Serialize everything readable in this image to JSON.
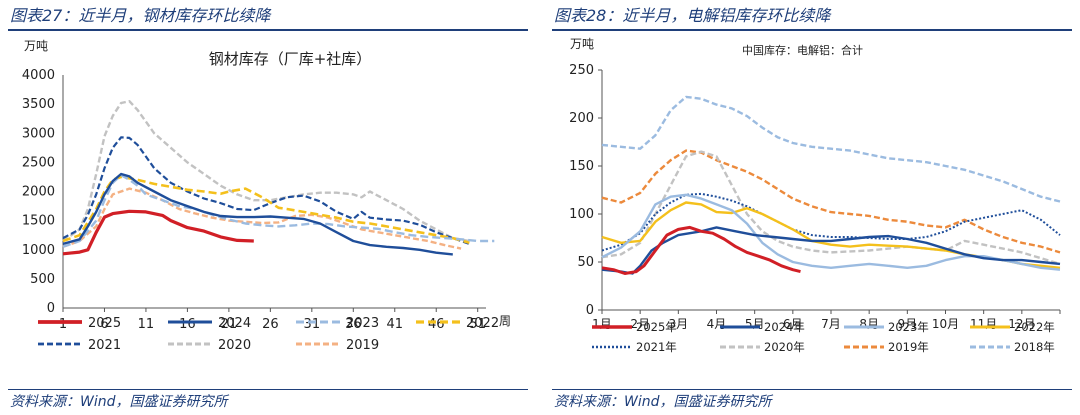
{
  "left": {
    "figure_title": "图表27：近半月，钢材库存环比续降",
    "source": "资料来源：Wind，国盛证券研究所"
  },
  "right": {
    "figure_title": "图表28：近半月，电解铝库存环比续降",
    "source": "资料来源：Wind，国盛证券研究所"
  },
  "chart_data": [
    {
      "type": "line",
      "title": "钢材库存（厂库+社库）",
      "ylabel": "万吨",
      "xlabel": "周",
      "ylim": [
        0,
        4000
      ],
      "yticks": [
        0,
        500,
        1000,
        1500,
        2000,
        2500,
        3000,
        3500,
        4000
      ],
      "xlim": [
        1,
        52
      ],
      "xticks": [
        1,
        6,
        11,
        16,
        21,
        26,
        31,
        36,
        41,
        46,
        51
      ],
      "legend_position": "bottom",
      "series": [
        {
          "name": "2025",
          "color": "#d11f26",
          "dash": "solid",
          "width": 3.2,
          "x": [
            1,
            3,
            4,
            5,
            6,
            7,
            9,
            11,
            13,
            14,
            16,
            18,
            20,
            22,
            24
          ],
          "y": [
            930,
            960,
            1000,
            1300,
            1560,
            1620,
            1660,
            1650,
            1590,
            1500,
            1380,
            1320,
            1220,
            1160,
            1150
          ]
        },
        {
          "name": "2024",
          "color": "#1f4e9a",
          "dash": "solid",
          "width": 2.4,
          "x": [
            1,
            3,
            4,
            5,
            6,
            7,
            8,
            9,
            10,
            12,
            14,
            16,
            18,
            20,
            22,
            24,
            26,
            28,
            30,
            32,
            34,
            36,
            38,
            40,
            42,
            44,
            46,
            48
          ],
          "y": [
            1100,
            1180,
            1400,
            1650,
            1950,
            2180,
            2300,
            2260,
            2150,
            2000,
            1850,
            1750,
            1650,
            1580,
            1560,
            1560,
            1570,
            1550,
            1530,
            1450,
            1300,
            1150,
            1080,
            1050,
            1030,
            1000,
            950,
            920
          ]
        },
        {
          "name": "2023",
          "color": "#9bbbe0",
          "dash": "8,4",
          "width": 2.4,
          "x": [
            1,
            3,
            5,
            6,
            7,
            8,
            9,
            10,
            11,
            13,
            15,
            17,
            19,
            21,
            23,
            25,
            27,
            29,
            31,
            33,
            35,
            37,
            39,
            41,
            43,
            45,
            47,
            49,
            51,
            53
          ],
          "y": [
            1050,
            1150,
            1500,
            1850,
            2150,
            2280,
            2200,
            2100,
            1950,
            1850,
            1750,
            1700,
            1600,
            1520,
            1450,
            1420,
            1400,
            1420,
            1450,
            1440,
            1400,
            1380,
            1360,
            1300,
            1250,
            1220,
            1200,
            1180,
            1150,
            1150
          ]
        },
        {
          "name": "2022",
          "color": "#f4c01c",
          "dash": "8,4",
          "width": 2.6,
          "x": [
            1,
            3,
            5,
            6,
            7,
            8,
            10,
            12,
            14,
            16,
            18,
            20,
            21,
            23,
            25,
            27,
            28,
            30,
            32,
            34,
            36,
            38,
            40,
            42,
            44,
            46,
            48,
            50
          ],
          "y": [
            1150,
            1250,
            1700,
            2000,
            2200,
            2250,
            2200,
            2130,
            2080,
            2030,
            2000,
            1960,
            2000,
            2050,
            1900,
            1720,
            1700,
            1650,
            1600,
            1550,
            1480,
            1450,
            1400,
            1350,
            1300,
            1250,
            1200,
            1120
          ]
        },
        {
          "name": "2021",
          "color": "#1f4e9a",
          "dash": "6,3",
          "width": 2.2,
          "x": [
            1,
            3,
            4,
            5,
            6,
            7,
            8,
            9,
            10,
            11,
            12,
            14,
            16,
            18,
            20,
            22,
            24,
            26,
            28,
            30,
            32,
            34,
            36,
            37,
            38,
            40,
            42,
            44,
            46,
            48,
            50
          ],
          "y": [
            1200,
            1350,
            1600,
            1950,
            2400,
            2750,
            2930,
            2920,
            2800,
            2600,
            2400,
            2150,
            2000,
            1880,
            1800,
            1700,
            1680,
            1800,
            1900,
            1930,
            1830,
            1650,
            1530,
            1650,
            1550,
            1520,
            1500,
            1430,
            1300,
            1200,
            1100
          ]
        },
        {
          "name": "2020",
          "color": "#c2c2c2",
          "dash": "6,3",
          "width": 2.4,
          "x": [
            1,
            3,
            4,
            5,
            6,
            7,
            8,
            9,
            10,
            11,
            12,
            14,
            16,
            18,
            20,
            22,
            24,
            26,
            28,
            30,
            32,
            34,
            36,
            37,
            38,
            40,
            42,
            44,
            46,
            48,
            50
          ],
          "y": [
            1150,
            1350,
            1700,
            2300,
            2950,
            3300,
            3520,
            3550,
            3400,
            3200,
            3000,
            2750,
            2500,
            2300,
            2100,
            1950,
            1850,
            1850,
            1900,
            1950,
            1980,
            1980,
            1950,
            1900,
            2000,
            1850,
            1700,
            1500,
            1350,
            1200,
            1150
          ]
        },
        {
          "name": "2019",
          "color": "#f4b183",
          "dash": "6,3",
          "width": 2.4,
          "x": [
            1,
            3,
            5,
            6,
            7,
            9,
            11,
            13,
            15,
            17,
            19,
            21,
            23,
            25,
            27,
            29,
            31,
            33,
            35,
            37,
            39,
            41,
            43,
            45,
            47,
            49
          ],
          "y": [
            1050,
            1150,
            1400,
            1700,
            1950,
            2050,
            1980,
            1850,
            1700,
            1620,
            1550,
            1500,
            1480,
            1460,
            1470,
            1580,
            1600,
            1550,
            1450,
            1350,
            1300,
            1250,
            1200,
            1150,
            1080,
            1020
          ]
        }
      ]
    },
    {
      "type": "line",
      "title": "中国库存：电解铝：合计",
      "ylabel": "万吨",
      "ylim": [
        0,
        250
      ],
      "yticks": [
        0,
        50,
        100,
        150,
        200,
        250
      ],
      "xlim": [
        1,
        13
      ],
      "xticks": [
        "1月",
        "2月",
        "3月",
        "4月",
        "5月",
        "6月",
        "7月",
        "8月",
        "9月",
        "10月",
        "11月",
        "12月"
      ],
      "legend_position": "bottom",
      "series": [
        {
          "name": "2025年",
          "color": "#d11f26",
          "dash": "solid",
          "width": 3,
          "x": [
            1,
            1.3,
            1.6,
            1.9,
            2.1,
            2.4,
            2.7,
            3,
            3.3,
            3.6,
            3.9,
            4.2,
            4.5,
            4.8,
            5.1,
            5.4,
            5.7,
            6,
            6.2
          ],
          "y": [
            44,
            42,
            38,
            40,
            46,
            62,
            78,
            84,
            86,
            82,
            80,
            74,
            66,
            60,
            56,
            52,
            46,
            42,
            40
          ]
        },
        {
          "name": "2024年",
          "color": "#1f4e9a",
          "dash": "solid",
          "width": 2.4,
          "x": [
            1,
            1.5,
            1.8,
            2,
            2.3,
            2.6,
            3,
            3.3,
            3.6,
            4,
            4.5,
            5,
            5.5,
            6,
            6.5,
            7,
            7.5,
            8,
            8.5,
            9,
            9.5,
            10,
            10.5,
            11,
            11.5,
            12,
            12.5,
            13
          ],
          "y": [
            42,
            40,
            38,
            46,
            62,
            70,
            78,
            80,
            82,
            86,
            82,
            78,
            76,
            74,
            72,
            72,
            74,
            76,
            77,
            74,
            70,
            64,
            58,
            54,
            52,
            52,
            50,
            48
          ]
        },
        {
          "name": "2023年",
          "color": "#9bbbe0",
          "dash": "solid",
          "width": 2.4,
          "x": [
            1,
            1.5,
            2,
            2.4,
            2.8,
            3.2,
            3.6,
            4,
            4.4,
            4.8,
            5.2,
            5.6,
            6,
            6.5,
            7,
            7.5,
            8,
            8.5,
            9,
            9.5,
            10,
            10.5,
            11,
            11.5,
            12,
            12.5,
            13
          ],
          "y": [
            55,
            65,
            82,
            110,
            118,
            120,
            116,
            110,
            104,
            90,
            70,
            58,
            50,
            46,
            44,
            46,
            48,
            46,
            44,
            46,
            52,
            56,
            56,
            52,
            48,
            44,
            42
          ]
        },
        {
          "name": "2022年",
          "color": "#f4c01c",
          "dash": "solid",
          "width": 2.4,
          "x": [
            1,
            1.5,
            2,
            2.4,
            2.8,
            3.2,
            3.6,
            4,
            4.4,
            4.8,
            5.2,
            5.6,
            6,
            6.5,
            7,
            7.5,
            8,
            8.5,
            9,
            9.5,
            10,
            10.5,
            11,
            11.5,
            12,
            12.5,
            13
          ],
          "y": [
            76,
            70,
            72,
            92,
            104,
            112,
            110,
            102,
            101,
            106,
            100,
            92,
            84,
            72,
            68,
            66,
            68,
            67,
            66,
            64,
            62,
            58,
            55,
            52,
            48,
            46,
            44
          ]
        },
        {
          "name": "2021年",
          "color": "#1f4e9a",
          "dash": "2,2",
          "width": 2,
          "x": [
            1,
            1.5,
            2,
            2.4,
            2.8,
            3.2,
            3.6,
            4,
            4.4,
            4.8,
            5.2,
            5.6,
            6,
            6.5,
            7,
            7.5,
            8,
            8.5,
            9,
            9.5,
            10,
            10.5,
            11,
            11.5,
            12,
            12.5,
            13
          ],
          "y": [
            62,
            68,
            80,
            100,
            112,
            120,
            121,
            118,
            114,
            108,
            100,
            92,
            84,
            78,
            76,
            76,
            75,
            74,
            74,
            76,
            82,
            92,
            96,
            100,
            104,
            94,
            78
          ]
        },
        {
          "name": "2020年",
          "color": "#c2c2c2",
          "dash": "6,3",
          "width": 2.4,
          "x": [
            1,
            1.5,
            2,
            2.4,
            2.8,
            3.2,
            3.6,
            4,
            4.4,
            4.8,
            5.2,
            5.6,
            6,
            6.5,
            7,
            7.5,
            8,
            8.5,
            9,
            9.5,
            10,
            10.5,
            11,
            11.5,
            12,
            12.5,
            13
          ],
          "y": [
            55,
            58,
            70,
            100,
            130,
            160,
            165,
            160,
            130,
            100,
            82,
            72,
            66,
            62,
            60,
            61,
            62,
            64,
            66,
            64,
            62,
            72,
            68,
            64,
            60,
            54,
            48
          ]
        },
        {
          "name": "2019年",
          "color": "#ec8a3c",
          "dash": "6,3",
          "width": 2.4,
          "x": [
            1,
            1.5,
            2,
            2.4,
            2.8,
            3.2,
            3.6,
            4,
            4.4,
            4.8,
            5.2,
            5.6,
            6,
            6.5,
            7,
            7.5,
            8,
            8.5,
            9,
            9.5,
            10,
            10.5,
            11,
            11.5,
            12,
            12.5,
            13
          ],
          "y": [
            117,
            112,
            122,
            142,
            156,
            166,
            164,
            156,
            150,
            144,
            136,
            126,
            116,
            108,
            102,
            100,
            98,
            94,
            92,
            88,
            86,
            94,
            84,
            76,
            70,
            66,
            60
          ]
        },
        {
          "name": "2018年",
          "color": "#9bbbe0",
          "dash": "6,3",
          "width": 2.4,
          "x": [
            1,
            1.5,
            2,
            2.4,
            2.8,
            3.2,
            3.6,
            4,
            4.4,
            4.8,
            5.2,
            5.6,
            6,
            6.5,
            7,
            7.5,
            8,
            8.5,
            9,
            9.5,
            10,
            10.5,
            11,
            11.5,
            12,
            12.5,
            13
          ],
          "y": [
            172,
            170,
            168,
            182,
            208,
            222,
            220,
            214,
            210,
            202,
            190,
            180,
            174,
            170,
            168,
            166,
            162,
            158,
            156,
            154,
            150,
            146,
            140,
            134,
            126,
            118,
            113
          ]
        }
      ]
    }
  ]
}
